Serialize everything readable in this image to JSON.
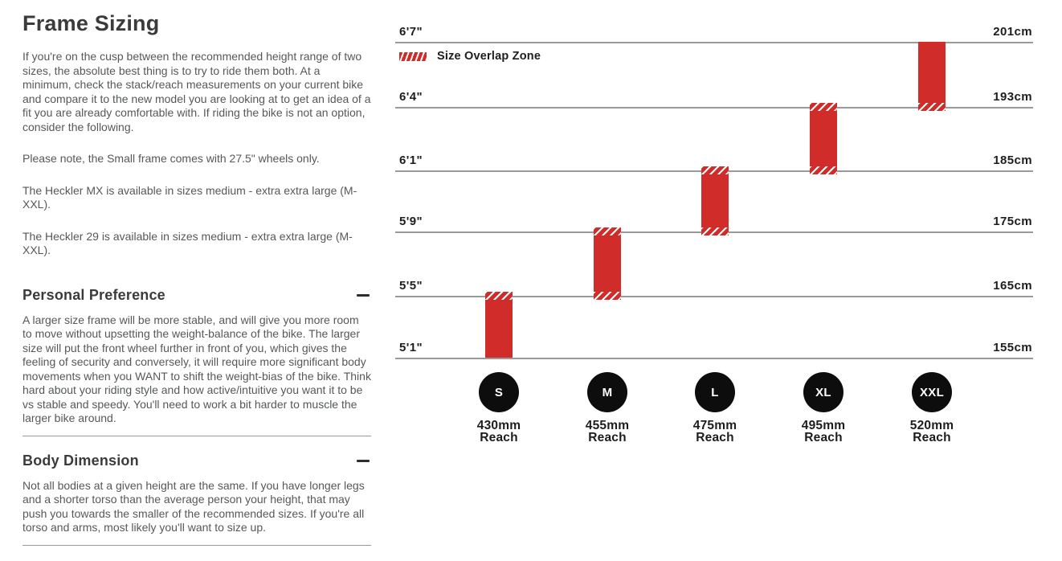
{
  "left_column": {
    "title": "Frame Sizing",
    "intro_paragraphs": [
      "If you're on the cusp between the recommended height range of two sizes, the absolute best thing is to try to ride them both. At a minimum, check the stack/reach measurements on your current bike and compare it to the new model you are looking at to get an idea of a fit you are already comfortable with. If riding the bike is not an option, consider the following.",
      "Please note, the Small frame comes with 27.5\" wheels only.",
      "The Heckler MX is available in sizes medium - extra extra large (M-XXL).",
      "The Heckler 29 is available in sizes medium - extra extra large (M-XXL)."
    ],
    "sections": [
      {
        "heading": "Personal Preference",
        "toggle_state": "expanded",
        "body": "A larger size frame will be more stable, and will give you more room to move without upsetting the weight-balance of the bike. The larger size will put the front wheel further in front of you, which gives the feeling of security and conversely, it will require more significant body movements when you WANT to shift the weight-bias of the bike. Think hard about your riding style and how active/intuitive you want it to be vs stable and speedy. You'll need to work a bit harder to muscle the larger bike around."
      },
      {
        "heading": "Body Dimension",
        "toggle_state": "expanded",
        "body": "Not all bodies at a given height are the same. If you have longer legs and a shorter torso than the average person your height, that may push you towards the smaller of the recommended sizes. If you're all torso and arms, most likely you'll want to size up."
      }
    ]
  },
  "chart_data": {
    "type": "bar",
    "title": "",
    "legend_label": "Size Overlap Zone",
    "legend_swatch": "red-diagonal-hatch",
    "y_axis_left_ticks": [
      "6'7\"",
      "6'4\"",
      "6'1\"",
      "5'9\"",
      "5'5\"",
      "5'1\""
    ],
    "y_axis_right_ticks": [
      "201cm",
      "193cm",
      "185cm",
      "175cm",
      "165cm",
      "155cm"
    ],
    "gridlines_cm": [
      201,
      193,
      185,
      175,
      165,
      155
    ],
    "reach_word": "Reach",
    "series": [
      {
        "size": "S",
        "reach": "430mm",
        "height_min_ft": "5'1\"",
        "height_max_ft": "5'5\"",
        "height_min_cm": 155,
        "height_max_cm": 165,
        "overlap_top": true,
        "overlap_bottom": false
      },
      {
        "size": "M",
        "reach": "455mm",
        "height_min_ft": "5'5\"",
        "height_max_ft": "5'9\"",
        "height_min_cm": 165,
        "height_max_cm": 175,
        "overlap_top": true,
        "overlap_bottom": true
      },
      {
        "size": "L",
        "reach": "475mm",
        "height_min_ft": "5'9\"",
        "height_max_ft": "6'1\"",
        "height_min_cm": 175,
        "height_max_cm": 185,
        "overlap_top": true,
        "overlap_bottom": true
      },
      {
        "size": "XL",
        "reach": "495mm",
        "height_min_ft": "6'1\"",
        "height_max_ft": "6'4\"",
        "height_min_cm": 185,
        "height_max_cm": 193,
        "overlap_top": true,
        "overlap_bottom": true
      },
      {
        "size": "XXL",
        "reach": "520mm",
        "height_min_ft": "6'4\"",
        "height_max_ft": "6'7\"",
        "height_min_cm": 193,
        "height_max_cm": 201,
        "overlap_top": false,
        "overlap_bottom": true
      }
    ],
    "colors": {
      "bar": "#d02d2a",
      "circle": "#0d0d0d",
      "gridline": "#9a9a9a",
      "tick_text": "#1d1d1d"
    }
  }
}
